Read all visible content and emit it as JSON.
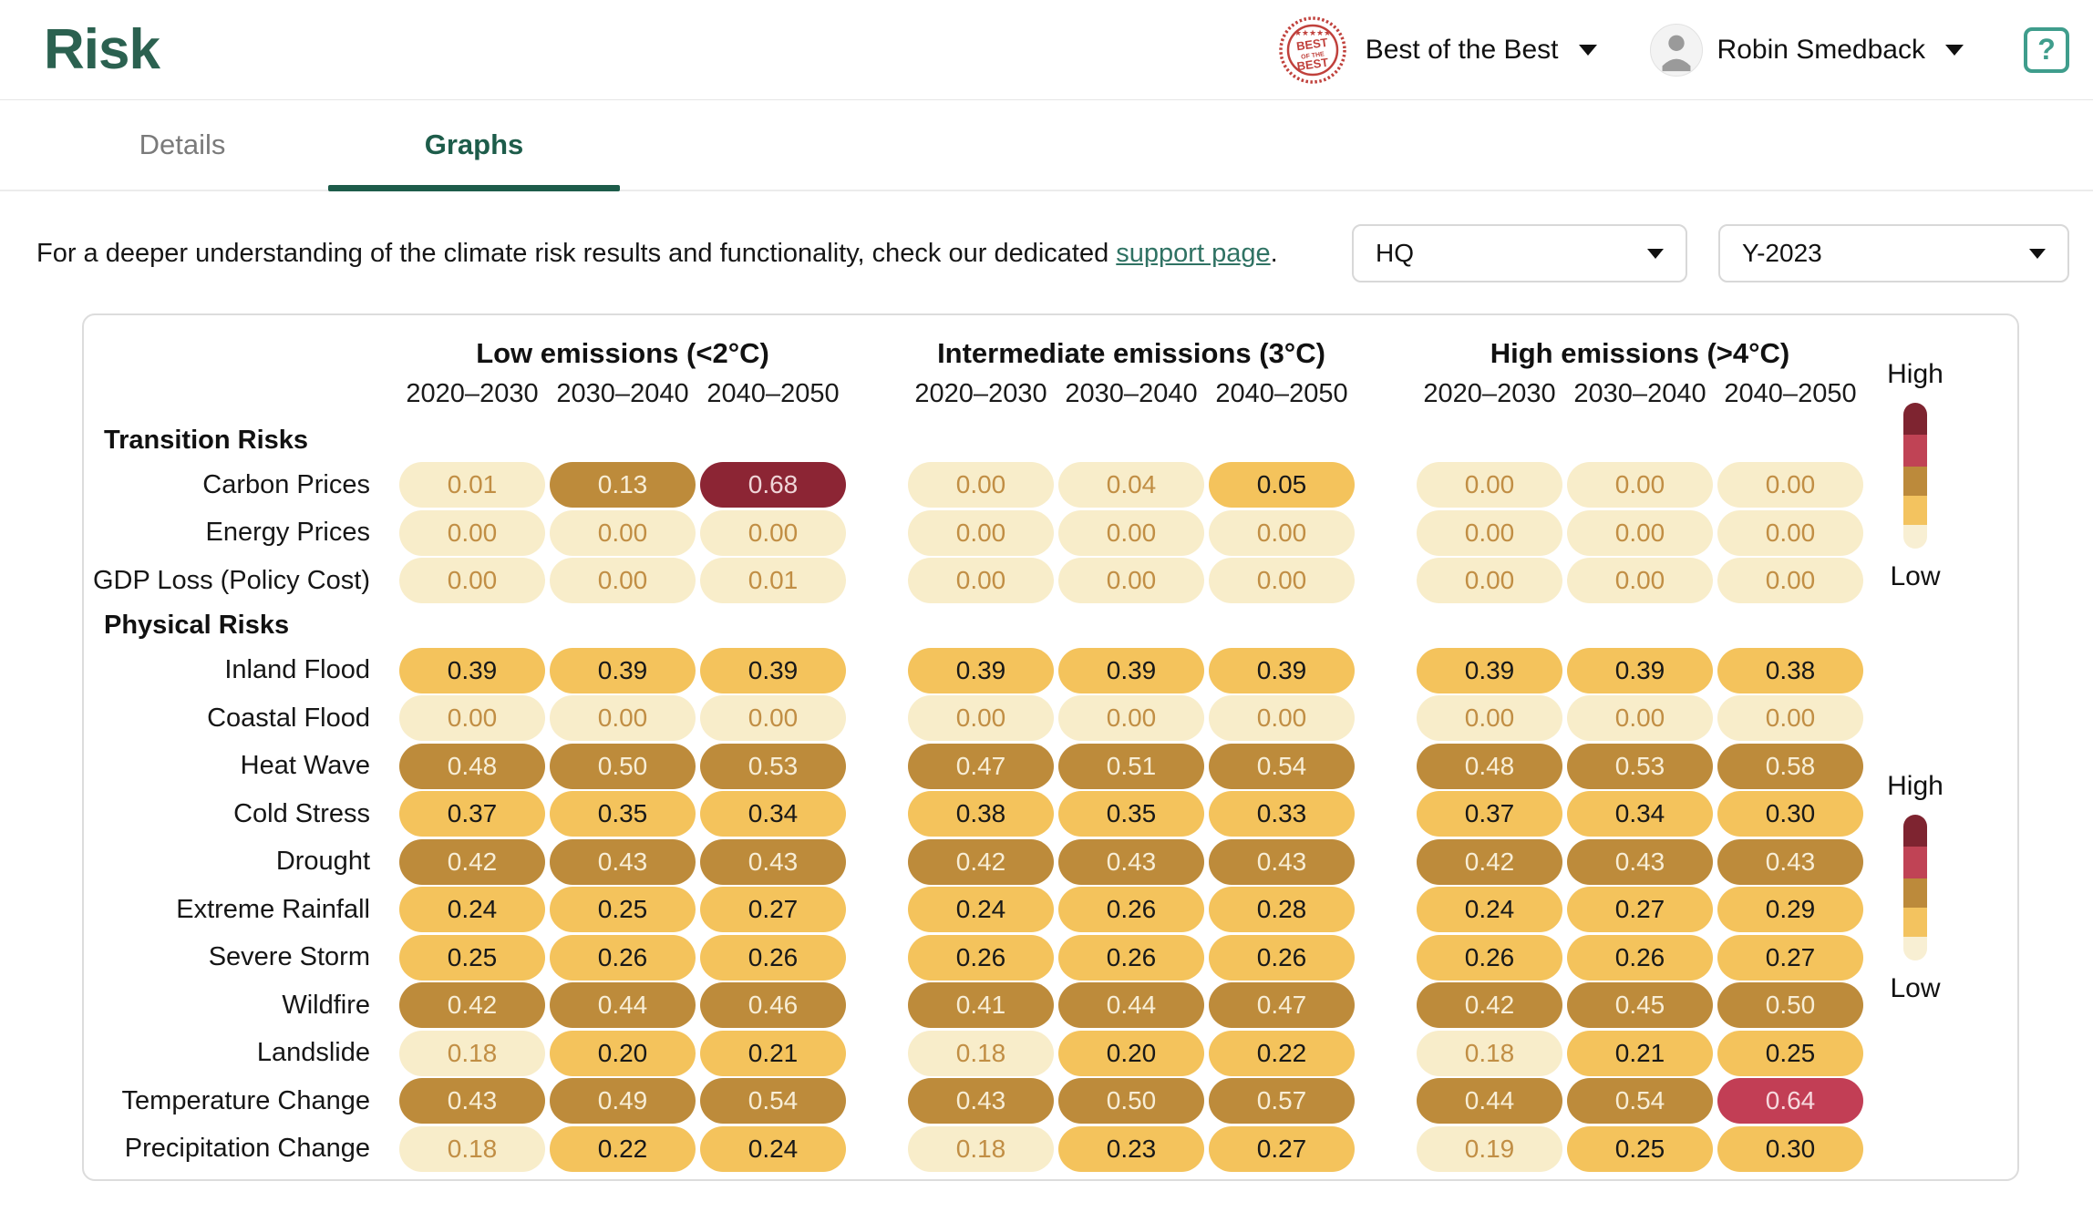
{
  "header": {
    "logo": "Risk",
    "badge": {
      "line1": "BEST",
      "line2": "OF THE",
      "line3": "BEST"
    },
    "org_label": "Best of the Best",
    "user_name": "Robin Smedback",
    "help_label": "?"
  },
  "tabs": [
    {
      "label": "Details",
      "active": false
    },
    {
      "label": "Graphs",
      "active": true
    }
  ],
  "support": {
    "text_before": "For a deeper understanding of the climate risk results and functionality, check our dedicated ",
    "link_text": "support page",
    "text_after": "."
  },
  "filters": {
    "site": "HQ",
    "year": "Y-2023"
  },
  "legend": {
    "high_label": "High",
    "low_label": "Low",
    "colors": [
      "#7e2430",
      "#c04355",
      "#bc8a3b",
      "#f3c35f",
      "#f8efd3"
    ],
    "segment_heights_pct": [
      22,
      22,
      20,
      20,
      16
    ]
  },
  "palette": {
    "brand_green": "#2b6150",
    "tab_active_green": "#1d5c4a",
    "link_green": "#2f7263",
    "help_teal": "#3f9d8c",
    "badge_red": "#c0413c",
    "pill_levels": {
      "cream": "#f8edca",
      "yellow": "#f4c35c",
      "bronze": "#bd8b3b",
      "crimson": "#c23e55",
      "maroon": "#8c2534"
    }
  },
  "chart_data": {
    "type": "heatmap",
    "title": "Climate risk scores by emissions scenario and period",
    "scenarios": [
      "Low emissions (<2°C)",
      "Intermediate emissions (3°C)",
      "High emissions (>4°C)"
    ],
    "periods": [
      "2020–2030",
      "2030–2040",
      "2040–2050"
    ],
    "value_range": [
      0,
      1
    ],
    "legend_position": "right",
    "level_names": [
      "cream",
      "yellow",
      "bronze",
      "crimson",
      "maroon"
    ],
    "sections": [
      {
        "name": "Transition Risks",
        "rows": [
          {
            "label": "Carbon Prices",
            "values": [
              [
                "0.01",
                "0.13",
                "0.68"
              ],
              [
                "0.00",
                "0.04",
                "0.05"
              ],
              [
                "0.00",
                "0.00",
                "0.00"
              ]
            ],
            "levels": [
              [
                0,
                2,
                4
              ],
              [
                0,
                0,
                1
              ],
              [
                0,
                0,
                0
              ]
            ]
          },
          {
            "label": "Energy Prices",
            "values": [
              [
                "0.00",
                "0.00",
                "0.00"
              ],
              [
                "0.00",
                "0.00",
                "0.00"
              ],
              [
                "0.00",
                "0.00",
                "0.00"
              ]
            ],
            "levels": [
              [
                0,
                0,
                0
              ],
              [
                0,
                0,
                0
              ],
              [
                0,
                0,
                0
              ]
            ]
          },
          {
            "label": "GDP Loss (Policy Cost)",
            "values": [
              [
                "0.00",
                "0.00",
                "0.01"
              ],
              [
                "0.00",
                "0.00",
                "0.00"
              ],
              [
                "0.00",
                "0.00",
                "0.00"
              ]
            ],
            "levels": [
              [
                0,
                0,
                0
              ],
              [
                0,
                0,
                0
              ],
              [
                0,
                0,
                0
              ]
            ]
          }
        ]
      },
      {
        "name": "Physical Risks",
        "rows": [
          {
            "label": "Inland Flood",
            "values": [
              [
                "0.39",
                "0.39",
                "0.39"
              ],
              [
                "0.39",
                "0.39",
                "0.39"
              ],
              [
                "0.39",
                "0.39",
                "0.38"
              ]
            ],
            "levels": [
              [
                1,
                1,
                1
              ],
              [
                1,
                1,
                1
              ],
              [
                1,
                1,
                1
              ]
            ]
          },
          {
            "label": "Coastal Flood",
            "values": [
              [
                "0.00",
                "0.00",
                "0.00"
              ],
              [
                "0.00",
                "0.00",
                "0.00"
              ],
              [
                "0.00",
                "0.00",
                "0.00"
              ]
            ],
            "levels": [
              [
                0,
                0,
                0
              ],
              [
                0,
                0,
                0
              ],
              [
                0,
                0,
                0
              ]
            ]
          },
          {
            "label": "Heat Wave",
            "values": [
              [
                "0.48",
                "0.50",
                "0.53"
              ],
              [
                "0.47",
                "0.51",
                "0.54"
              ],
              [
                "0.48",
                "0.53",
                "0.58"
              ]
            ],
            "levels": [
              [
                2,
                2,
                2
              ],
              [
                2,
                2,
                2
              ],
              [
                2,
                2,
                2
              ]
            ]
          },
          {
            "label": "Cold Stress",
            "values": [
              [
                "0.37",
                "0.35",
                "0.34"
              ],
              [
                "0.38",
                "0.35",
                "0.33"
              ],
              [
                "0.37",
                "0.34",
                "0.30"
              ]
            ],
            "levels": [
              [
                1,
                1,
                1
              ],
              [
                1,
                1,
                1
              ],
              [
                1,
                1,
                1
              ]
            ]
          },
          {
            "label": "Drought",
            "values": [
              [
                "0.42",
                "0.43",
                "0.43"
              ],
              [
                "0.42",
                "0.43",
                "0.43"
              ],
              [
                "0.42",
                "0.43",
                "0.43"
              ]
            ],
            "levels": [
              [
                2,
                2,
                2
              ],
              [
                2,
                2,
                2
              ],
              [
                2,
                2,
                2
              ]
            ]
          },
          {
            "label": "Extreme Rainfall",
            "values": [
              [
                "0.24",
                "0.25",
                "0.27"
              ],
              [
                "0.24",
                "0.26",
                "0.28"
              ],
              [
                "0.24",
                "0.27",
                "0.29"
              ]
            ],
            "levels": [
              [
                1,
                1,
                1
              ],
              [
                1,
                1,
                1
              ],
              [
                1,
                1,
                1
              ]
            ]
          },
          {
            "label": "Severe Storm",
            "values": [
              [
                "0.25",
                "0.26",
                "0.26"
              ],
              [
                "0.26",
                "0.26",
                "0.26"
              ],
              [
                "0.26",
                "0.26",
                "0.27"
              ]
            ],
            "levels": [
              [
                1,
                1,
                1
              ],
              [
                1,
                1,
                1
              ],
              [
                1,
                1,
                1
              ]
            ]
          },
          {
            "label": "Wildfire",
            "values": [
              [
                "0.42",
                "0.44",
                "0.46"
              ],
              [
                "0.41",
                "0.44",
                "0.47"
              ],
              [
                "0.42",
                "0.45",
                "0.50"
              ]
            ],
            "levels": [
              [
                2,
                2,
                2
              ],
              [
                2,
                2,
                2
              ],
              [
                2,
                2,
                2
              ]
            ]
          },
          {
            "label": "Landslide",
            "values": [
              [
                "0.18",
                "0.20",
                "0.21"
              ],
              [
                "0.18",
                "0.20",
                "0.22"
              ],
              [
                "0.18",
                "0.21",
                "0.25"
              ]
            ],
            "levels": [
              [
                0,
                1,
                1
              ],
              [
                0,
                1,
                1
              ],
              [
                0,
                1,
                1
              ]
            ]
          },
          {
            "label": "Temperature Change",
            "values": [
              [
                "0.43",
                "0.49",
                "0.54"
              ],
              [
                "0.43",
                "0.50",
                "0.57"
              ],
              [
                "0.44",
                "0.54",
                "0.64"
              ]
            ],
            "levels": [
              [
                2,
                2,
                2
              ],
              [
                2,
                2,
                2
              ],
              [
                2,
                2,
                3
              ]
            ]
          },
          {
            "label": "Precipitation Change",
            "values": [
              [
                "0.18",
                "0.22",
                "0.24"
              ],
              [
                "0.18",
                "0.23",
                "0.27"
              ],
              [
                "0.19",
                "0.25",
                "0.30"
              ]
            ],
            "levels": [
              [
                0,
                1,
                1
              ],
              [
                0,
                1,
                1
              ],
              [
                0,
                1,
                1
              ]
            ]
          }
        ]
      }
    ]
  }
}
